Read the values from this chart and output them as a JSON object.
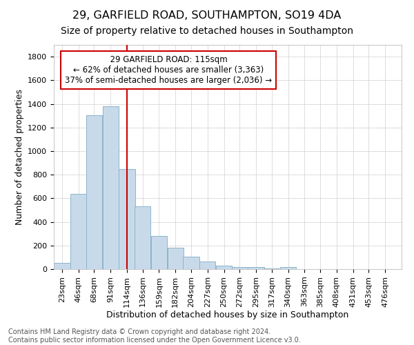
{
  "title": "29, GARFIELD ROAD, SOUTHAMPTON, SO19 4DA",
  "subtitle": "Size of property relative to detached houses in Southampton",
  "xlabel": "Distribution of detached houses by size in Southampton",
  "ylabel": "Number of detached properties",
  "footnote1": "Contains HM Land Registry data © Crown copyright and database right 2024.",
  "footnote2": "Contains public sector information licensed under the Open Government Licence v3.0.",
  "annotation_line1": "29 GARFIELD ROAD: 115sqm",
  "annotation_line2": "← 62% of detached houses are smaller (3,363)",
  "annotation_line3": "37% of semi-detached houses are larger (2,036) →",
  "marker_x": 114,
  "bar_color": "#c8daea",
  "bar_edge_color": "#8ab4cc",
  "marker_color": "#cc0000",
  "annotation_box_color": "#cc0000",
  "categories": [
    "23sqm",
    "46sqm",
    "68sqm",
    "91sqm",
    "114sqm",
    "136sqm",
    "159sqm",
    "182sqm",
    "204sqm",
    "227sqm",
    "250sqm",
    "272sqm",
    "295sqm",
    "317sqm",
    "340sqm",
    "363sqm",
    "385sqm",
    "408sqm",
    "431sqm",
    "453sqm",
    "476sqm"
  ],
  "bin_centers": [
    23,
    46,
    68,
    91,
    114,
    136,
    159,
    182,
    204,
    227,
    250,
    272,
    295,
    317,
    340,
    363,
    385,
    408,
    431,
    453,
    476
  ],
  "bin_width": 23,
  "values": [
    50,
    640,
    1305,
    1380,
    850,
    530,
    280,
    180,
    105,
    65,
    30,
    20,
    20,
    5,
    15,
    2,
    2,
    1,
    1,
    0,
    0
  ],
  "ylim": [
    0,
    1900
  ],
  "yticks": [
    0,
    200,
    400,
    600,
    800,
    1000,
    1200,
    1400,
    1600,
    1800
  ],
  "xlim": [
    11.5,
    499
  ],
  "grid_color": "#d0d0d0",
  "bg_color": "#ffffff",
  "title_fontsize": 11.5,
  "subtitle_fontsize": 10,
  "axis_label_fontsize": 9,
  "tick_fontsize": 8,
  "annotation_fontsize": 8.5,
  "footnote_fontsize": 7
}
